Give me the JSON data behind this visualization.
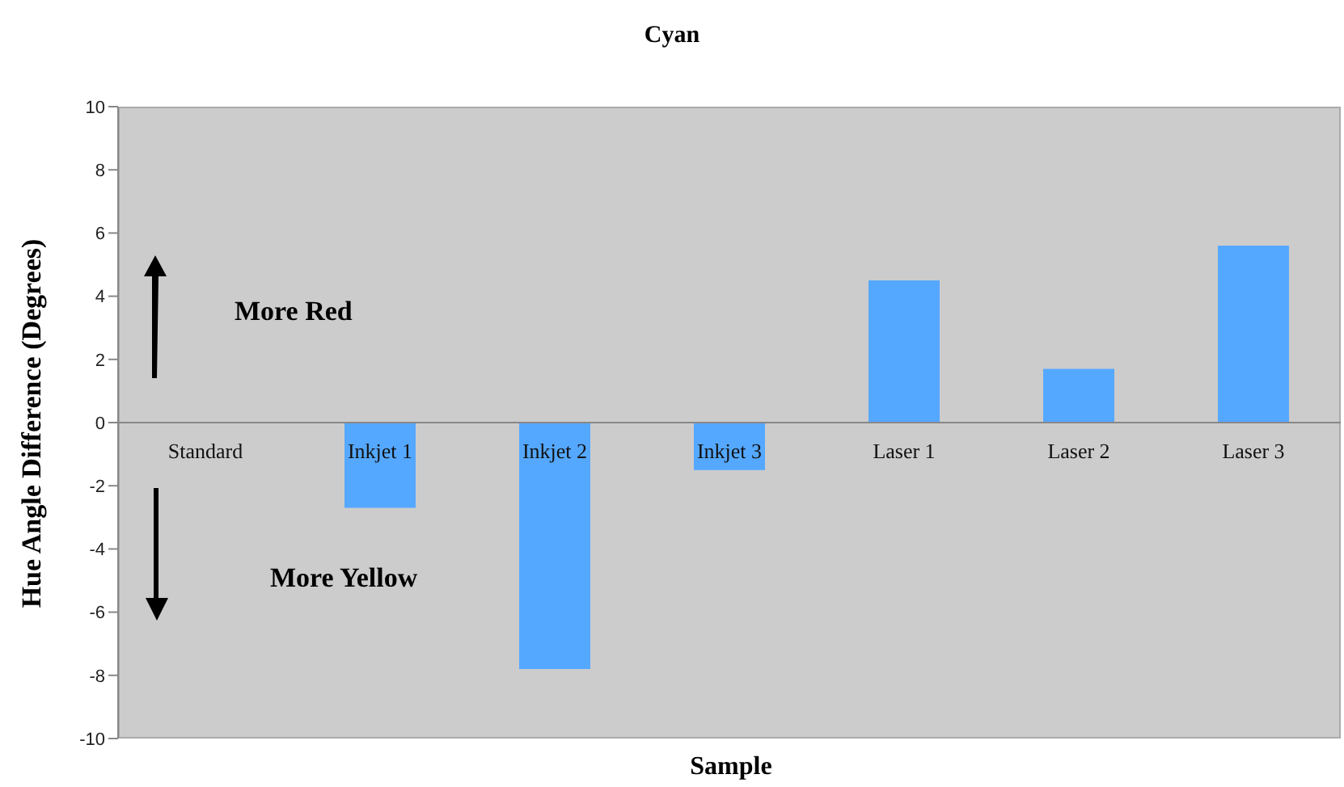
{
  "chart_data": {
    "type": "bar",
    "title": "Cyan",
    "xlabel": "Sample",
    "ylabel": "Hue Angle Difference (Degrees)",
    "categories": [
      "Standard",
      "Inkjet 1",
      "Inkjet 2",
      "Inkjet 3",
      "Laser 1",
      "Laser 2",
      "Laser 3"
    ],
    "values": [
      0,
      -2.7,
      -7.8,
      -1.5,
      4.5,
      1.7,
      5.6
    ],
    "color": "#55a8ff",
    "ylim": [
      -10,
      10
    ],
    "yticks": [
      -10,
      -8,
      -6,
      -4,
      -2,
      0,
      2,
      4,
      6,
      8,
      10
    ],
    "annotations": [
      "More Red",
      "More Yellow"
    ]
  }
}
